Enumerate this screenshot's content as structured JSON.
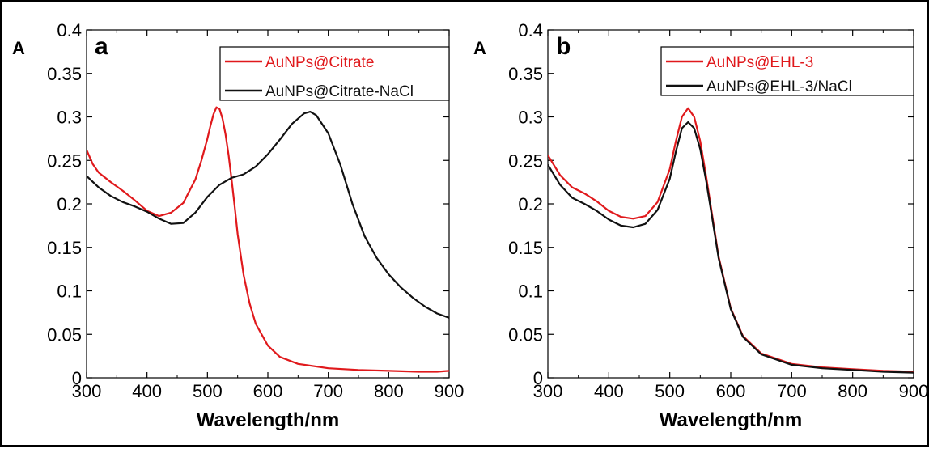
{
  "colors": {
    "red": "#e0191c",
    "black": "#111111"
  },
  "chart_data": [
    {
      "type": "line",
      "panel_label": "a",
      "ylabel": "A",
      "xlabel": "Wavelength/nm",
      "xlim": [
        300,
        900
      ],
      "ylim": [
        0,
        0.4
      ],
      "xticks": [
        "300",
        "400",
        "500",
        "600",
        "700",
        "800",
        "900"
      ],
      "yticks": [
        "0",
        "0.05",
        "0.1",
        "0.15",
        "0.2",
        "0.25",
        "0.3",
        "0.35",
        "0.4"
      ],
      "legend_position": "top-right",
      "series": [
        {
          "name": "AuNPs@Citrate",
          "color": "#e0191c",
          "x": [
            300,
            310,
            320,
            340,
            360,
            380,
            400,
            420,
            440,
            460,
            480,
            490,
            500,
            505,
            510,
            515,
            520,
            525,
            530,
            535,
            540,
            545,
            550,
            560,
            570,
            580,
            600,
            620,
            650,
            700,
            750,
            800,
            850,
            880,
            900
          ],
          "y": [
            0.262,
            0.246,
            0.236,
            0.225,
            0.215,
            0.204,
            0.192,
            0.186,
            0.19,
            0.201,
            0.228,
            0.25,
            0.275,
            0.29,
            0.303,
            0.311,
            0.309,
            0.298,
            0.28,
            0.256,
            0.228,
            0.198,
            0.165,
            0.118,
            0.085,
            0.062,
            0.037,
            0.024,
            0.016,
            0.011,
            0.009,
            0.008,
            0.007,
            0.007,
            0.008
          ]
        },
        {
          "name": "AuNPs@Citrate-NaCl",
          "color": "#111111",
          "x": [
            300,
            320,
            340,
            360,
            380,
            400,
            420,
            440,
            460,
            480,
            500,
            520,
            540,
            560,
            580,
            600,
            620,
            640,
            660,
            670,
            680,
            700,
            720,
            740,
            760,
            780,
            800,
            820,
            840,
            860,
            880,
            900
          ],
          "y": [
            0.232,
            0.219,
            0.209,
            0.202,
            0.197,
            0.191,
            0.183,
            0.177,
            0.178,
            0.19,
            0.208,
            0.222,
            0.23,
            0.234,
            0.243,
            0.257,
            0.274,
            0.292,
            0.304,
            0.306,
            0.302,
            0.281,
            0.245,
            0.2,
            0.163,
            0.138,
            0.119,
            0.104,
            0.092,
            0.082,
            0.074,
            0.069
          ]
        }
      ]
    },
    {
      "type": "line",
      "panel_label": "b",
      "ylabel": "A",
      "xlabel": "Wavelength/nm",
      "xlim": [
        300,
        900
      ],
      "ylim": [
        0,
        0.4
      ],
      "xticks": [
        "300",
        "400",
        "500",
        "600",
        "700",
        "800",
        "900"
      ],
      "yticks": [
        "0",
        "0.05",
        "0.1",
        "0.15",
        "0.2",
        "0.25",
        "0.3",
        "0.35",
        "0.4"
      ],
      "legend_position": "top-right",
      "series": [
        {
          "name": "AuNPs@EHL-3",
          "color": "#e0191c",
          "x": [
            300,
            320,
            340,
            360,
            380,
            400,
            420,
            440,
            460,
            480,
            500,
            510,
            520,
            530,
            540,
            550,
            560,
            570,
            580,
            600,
            620,
            650,
            700,
            750,
            800,
            850,
            900
          ],
          "y": [
            0.256,
            0.233,
            0.219,
            0.212,
            0.203,
            0.192,
            0.185,
            0.183,
            0.186,
            0.202,
            0.24,
            0.272,
            0.3,
            0.31,
            0.3,
            0.272,
            0.23,
            0.185,
            0.14,
            0.08,
            0.048,
            0.028,
            0.016,
            0.012,
            0.01,
            0.008,
            0.007
          ]
        },
        {
          "name": "AuNPs@EHL-3/NaCl",
          "color": "#111111",
          "x": [
            300,
            320,
            340,
            360,
            380,
            400,
            420,
            440,
            460,
            480,
            500,
            510,
            520,
            530,
            540,
            550,
            560,
            570,
            580,
            600,
            620,
            650,
            700,
            750,
            800,
            850,
            900
          ],
          "y": [
            0.245,
            0.222,
            0.207,
            0.2,
            0.192,
            0.182,
            0.175,
            0.173,
            0.177,
            0.193,
            0.229,
            0.26,
            0.287,
            0.294,
            0.287,
            0.263,
            0.225,
            0.182,
            0.138,
            0.079,
            0.047,
            0.027,
            0.015,
            0.011,
            0.009,
            0.007,
            0.006
          ]
        }
      ]
    }
  ]
}
